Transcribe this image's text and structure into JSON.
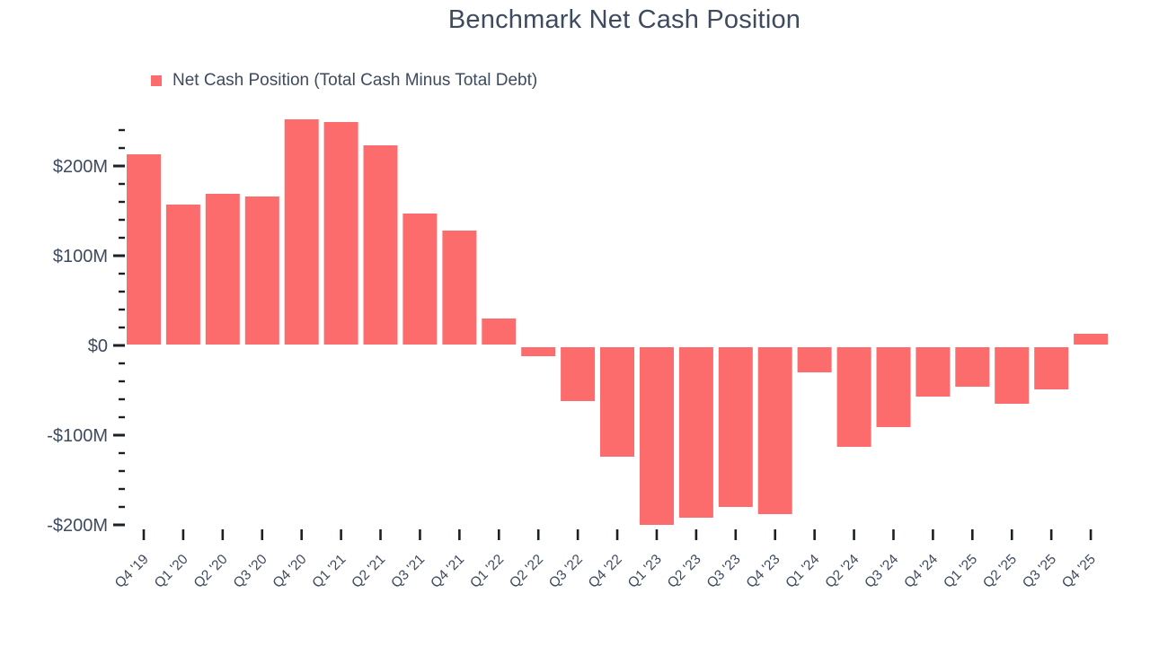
{
  "chart_data": {
    "type": "bar",
    "title": "Benchmark Net Cash Position",
    "legend": "Net Cash Position (Total Cash Minus Total Debt)",
    "legend_position": "top-left",
    "grid": "off",
    "categories": [
      "Q4 '19",
      "Q1 '20",
      "Q2 '20",
      "Q3 '20",
      "Q4 '20",
      "Q1 '21",
      "Q2 '21",
      "Q3 '21",
      "Q4 '21",
      "Q1 '22",
      "Q2 '22",
      "Q3 '22",
      "Q4 '22",
      "Q1 '23",
      "Q2 '23",
      "Q3 '23",
      "Q4 '23",
      "Q1 '24",
      "Q2 '24",
      "Q3 '24",
      "Q4 '24",
      "Q1 '25",
      "Q2 '25",
      "Q3 '25",
      "Q4 '25"
    ],
    "values": [
      213,
      157,
      169,
      166,
      252,
      249,
      223,
      147,
      128,
      30,
      -12,
      -62,
      -124,
      -200,
      -192,
      -180,
      -188,
      -30,
      -113,
      -91,
      -57,
      -46,
      -65,
      -49,
      13
    ],
    "value_unit_suffix": "M",
    "currency_prefix": "$",
    "ylim": [
      -210,
      255
    ],
    "y_major_ticks": [
      {
        "value": 200,
        "label": "$200M"
      },
      {
        "value": 100,
        "label": "$100M"
      },
      {
        "value": 0,
        "label": "$0"
      },
      {
        "value": -100,
        "label": "-$100M"
      },
      {
        "value": -200,
        "label": "-$200M"
      }
    ],
    "y_minor_tick_values": [
      240,
      220,
      180,
      160,
      140,
      120,
      80,
      60,
      40,
      20,
      -20,
      -40,
      -60,
      -80,
      -120,
      -140,
      -160,
      -180
    ],
    "colors": {
      "bar": "#FC6C6C",
      "text": "#3E4A5E",
      "tick": "#1B2026"
    }
  }
}
